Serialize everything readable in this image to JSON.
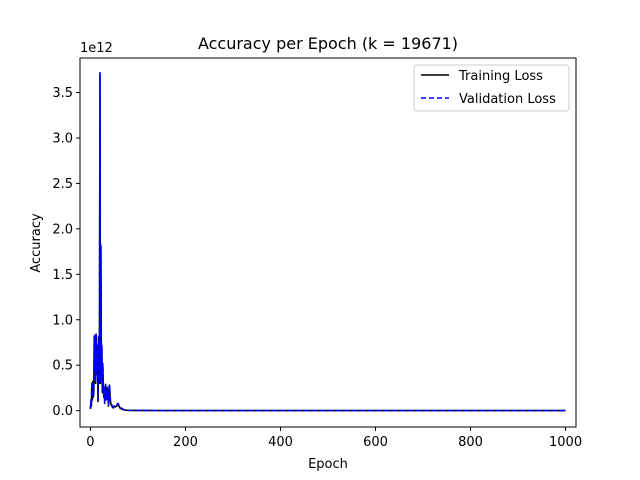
{
  "chart_data": {
    "type": "line",
    "title": "Accuracy per Epoch (k = 19671)",
    "xlabel": "Epoch",
    "ylabel": "Accuracy",
    "y_offset_label": "1e12",
    "xlim": [
      -22,
      1022
    ],
    "ylim": [
      -0.18,
      3.88
    ],
    "xticks": [
      0,
      200,
      400,
      600,
      800,
      1000
    ],
    "xtick_labels": [
      "0",
      "200",
      "400",
      "600",
      "800",
      "1000"
    ],
    "yticks": [
      0.0,
      0.5,
      1.0,
      1.5,
      2.0,
      2.5,
      3.0,
      3.5
    ],
    "ytick_labels": [
      "0.0",
      "0.5",
      "1.0",
      "1.5",
      "2.0",
      "2.5",
      "3.0",
      "3.5"
    ],
    "grid": false,
    "legend_position": "top-right",
    "series": [
      {
        "name": "Training Loss",
        "color": "#000000",
        "style": "solid",
        "x": [
          0,
          1,
          2,
          3,
          4,
          5,
          6,
          7,
          8,
          9,
          10,
          11,
          12,
          13,
          14,
          15,
          16,
          17,
          18,
          19,
          20,
          21,
          22,
          23,
          24,
          25,
          26,
          27,
          28,
          29,
          30,
          32,
          34,
          36,
          38,
          40,
          42,
          44,
          46,
          48,
          50,
          52,
          55,
          58,
          60,
          62,
          65,
          70,
          75,
          80,
          90,
          100,
          150,
          200,
          300,
          400,
          500,
          600,
          700,
          800,
          900,
          1000
        ],
        "y": [
          0.02,
          0.1,
          0.05,
          0.3,
          0.12,
          0.32,
          0.15,
          0.2,
          0.8,
          0.45,
          0.83,
          0.3,
          0.84,
          0.4,
          0.7,
          0.5,
          0.1,
          0.8,
          0.3,
          0.6,
          3.7,
          0.3,
          1.8,
          0.4,
          0.7,
          0.2,
          0.5,
          0.28,
          0.15,
          0.25,
          0.08,
          0.28,
          0.12,
          0.25,
          0.05,
          0.28,
          0.1,
          0.06,
          0.04,
          0.03,
          0.05,
          0.04,
          0.05,
          0.07,
          0.05,
          0.03,
          0.02,
          0.01,
          0.005,
          0.003,
          0.002,
          0.002,
          0.001,
          0.001,
          0.001,
          0.001,
          0.001,
          0.001,
          0.001,
          0.001,
          0.001,
          0.001
        ]
      },
      {
        "name": "Validation Loss",
        "color": "#0000ff",
        "style": "dashed",
        "x": [
          0,
          1,
          2,
          3,
          4,
          5,
          6,
          7,
          8,
          9,
          10,
          11,
          12,
          13,
          14,
          15,
          16,
          17,
          18,
          19,
          20,
          21,
          22,
          23,
          24,
          25,
          26,
          27,
          28,
          29,
          30,
          32,
          34,
          36,
          38,
          40,
          42,
          44,
          46,
          48,
          50,
          52,
          55,
          58,
          60,
          62,
          65,
          70,
          75,
          80,
          90,
          100,
          150,
          200,
          300,
          400,
          500,
          600,
          700,
          800,
          900,
          1000
        ],
        "y": [
          0.02,
          0.12,
          0.06,
          0.32,
          0.14,
          0.3,
          0.17,
          0.22,
          0.82,
          0.47,
          0.84,
          0.32,
          0.83,
          0.42,
          0.72,
          0.52,
          0.12,
          0.82,
          0.32,
          0.62,
          3.72,
          0.32,
          1.82,
          0.42,
          0.72,
          0.22,
          0.52,
          0.29,
          0.16,
          0.27,
          0.09,
          0.29,
          0.13,
          0.27,
          0.06,
          0.28,
          0.11,
          0.07,
          0.05,
          0.04,
          0.06,
          0.05,
          0.06,
          0.08,
          0.06,
          0.04,
          0.03,
          0.01,
          0.006,
          0.004,
          0.003,
          0.002,
          0.001,
          0.001,
          0.001,
          0.001,
          0.001,
          0.001,
          0.001,
          0.001,
          0.001,
          0.001
        ]
      }
    ]
  }
}
